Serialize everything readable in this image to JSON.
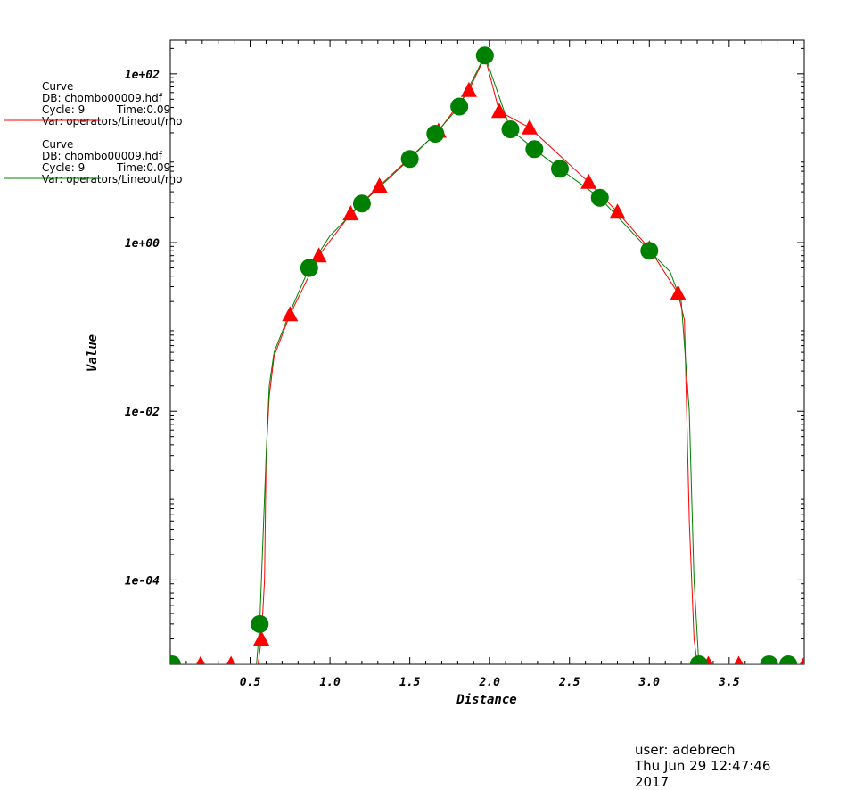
{
  "chart_data": {
    "type": "line",
    "xlabel": "Distance",
    "ylabel": "Value",
    "xlim": [
      0.0,
      3.97
    ],
    "ylim_log10": [
      -5.0,
      2.4
    ],
    "y_scale": "log",
    "grid": false,
    "x_ticks": [
      0.5,
      1.0,
      1.5,
      2.0,
      2.5,
      3.0,
      3.5
    ],
    "x_tick_labels": [
      "0.5",
      "1.0",
      "1.5",
      "2.0",
      "2.5",
      "3.0",
      "3.5"
    ],
    "y_ticks": [
      0.0001,
      0.01,
      1,
      100
    ],
    "y_tick_labels": [
      "1e-04",
      "1e-02",
      "1e+00",
      "1e+02"
    ],
    "series": [
      {
        "color": "#ff0000",
        "marker": "triangle",
        "legend": [
          "Curve",
          "DB: chombo00009.hdf",
          "Cycle: 9",
          "Time:0.09",
          "Var: operators/Lineout/rho"
        ],
        "x": [
          0.0,
          0.55,
          0.57,
          0.59,
          0.6,
          0.62,
          0.65,
          0.75,
          0.93,
          1.13,
          1.31,
          1.68,
          1.87,
          1.97,
          2.06,
          2.25,
          2.62,
          2.8,
          3.0,
          3.18,
          3.22,
          3.25,
          3.28,
          3.3,
          3.97
        ],
        "y": [
          1e-05,
          1e-05,
          2e-05,
          0.0001,
          0.003,
          0.015,
          0.045,
          0.14,
          0.7,
          2.2,
          4.7,
          21,
          64,
          160,
          36,
          23,
          5.2,
          2.3,
          0.85,
          0.25,
          0.12,
          0.0005,
          2e-05,
          1e-05,
          1e-05
        ],
        "marker_x": [
          0.01,
          0.19,
          0.38,
          0.57,
          0.75,
          0.93,
          1.13,
          1.31,
          1.68,
          1.87,
          2.06,
          2.25,
          2.62,
          2.8,
          3.0,
          3.18,
          3.37,
          3.56,
          3.97
        ],
        "marker_y": [
          1e-05,
          1e-05,
          1e-05,
          2e-05,
          0.14,
          0.7,
          2.2,
          4.7,
          21,
          64,
          36,
          23,
          5.2,
          2.3,
          0.85,
          0.25,
          1e-05,
          1e-05,
          1e-05
        ]
      },
      {
        "color": "#008000",
        "marker": "circle",
        "legend": [
          "Curve",
          "DB: chombo00009.hdf",
          "Cycle: 9",
          "Time:0.09",
          "Var: operators/Lineout/rho"
        ],
        "x": [
          0.0,
          0.54,
          0.56,
          0.58,
          0.6,
          0.62,
          0.65,
          0.75,
          0.87,
          1.0,
          1.2,
          1.5,
          1.66,
          1.81,
          1.97,
          2.13,
          2.28,
          2.44,
          2.69,
          3.0,
          3.13,
          3.2,
          3.25,
          3.28,
          3.31,
          3.97
        ],
        "y": [
          1e-05,
          1e-05,
          3e-05,
          0.0003,
          0.003,
          0.02,
          0.05,
          0.15,
          0.5,
          1.2,
          2.9,
          9.8,
          19.5,
          41,
          165,
          22,
          12.8,
          7.5,
          3.4,
          0.8,
          0.45,
          0.2,
          0.01,
          0.0001,
          1e-05,
          1e-05
        ],
        "marker_x": [
          0.01,
          0.56,
          0.87,
          1.2,
          1.5,
          1.66,
          1.81,
          1.97,
          2.13,
          2.28,
          2.44,
          2.69,
          3.0,
          3.31,
          3.75,
          3.87
        ],
        "marker_y": [
          1e-05,
          3e-05,
          0.5,
          2.9,
          9.8,
          19.5,
          41,
          165,
          22,
          12.8,
          7.5,
          3.4,
          0.8,
          1e-05,
          1e-05,
          1e-05
        ]
      }
    ]
  },
  "footer": {
    "user": "user: adebrech",
    "date": "Thu Jun 29 12:47:46 2017"
  }
}
